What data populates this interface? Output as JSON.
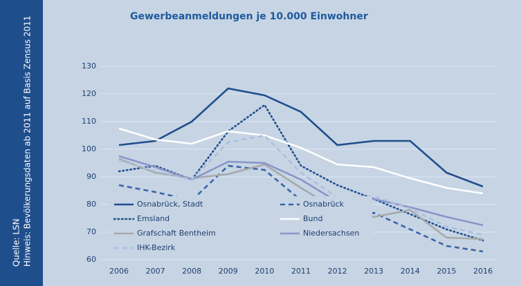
{
  "chart_data": {
    "type": "line",
    "title": "Gewerbeanmeldungen je 10.000 Einwohner",
    "source": "Quelle: LSN",
    "note": "Hinweis: Bevölkerungsdaten ab 2011 auf Basis Zensus 2011",
    "categories": [
      "2006",
      "2007",
      "2008",
      "2009",
      "2010",
      "2011",
      "2012",
      "2013",
      "2014",
      "2015",
      "2016"
    ],
    "ylim": [
      60,
      130
    ],
    "yticks": [
      60,
      70,
      80,
      90,
      100,
      110,
      120,
      130
    ],
    "grid": true,
    "legend": "lower left",
    "series": [
      {
        "name": "Osnabrück, Stadt",
        "color": "#1f4e8c",
        "dash": "solid",
        "values": [
          101.5,
          103,
          110,
          122,
          119.5,
          113.5,
          101.5,
          103,
          103,
          91.5,
          86.5
        ]
      },
      {
        "name": "Osnabrück",
        "color": "#3a64a8",
        "dash": "dashed",
        "values": [
          87,
          84.5,
          81.5,
          94,
          92.5,
          81.5,
          71.5,
          77,
          71,
          65,
          63
        ]
      },
      {
        "name": "Emsland",
        "color": "#1f4e8c",
        "dash": "dotted",
        "values": [
          92,
          94,
          89,
          106.5,
          116,
          94,
          87,
          82,
          76.5,
          71,
          67
        ]
      },
      {
        "name": "Bund",
        "color": "#ffffff",
        "dash": "solid",
        "values": [
          107.5,
          103.5,
          102,
          106.5,
          105,
          100.5,
          94.5,
          93.5,
          89.5,
          86,
          84
        ]
      },
      {
        "name": "Grafschaft Bentheim",
        "color": "#a6a9ab",
        "dash": "solid",
        "values": [
          96.5,
          91.5,
          89.5,
          91,
          94.5,
          86,
          78,
          75.5,
          78,
          68,
          67.5
        ]
      },
      {
        "name": "Niedersachsen",
        "color": "#8a95c9",
        "dash": "solid",
        "values": [
          97.5,
          93.5,
          89,
          95.5,
          95,
          89,
          81,
          82,
          79,
          75.5,
          72.5
        ]
      },
      {
        "name": "IHK-Bezirk",
        "color": "#a9c0de",
        "dash": "dashed",
        "values": [
          96,
          92,
          89,
          102.5,
          105,
          91.5,
          82.5,
          83,
          78.5,
          72,
          69
        ]
      }
    ]
  }
}
